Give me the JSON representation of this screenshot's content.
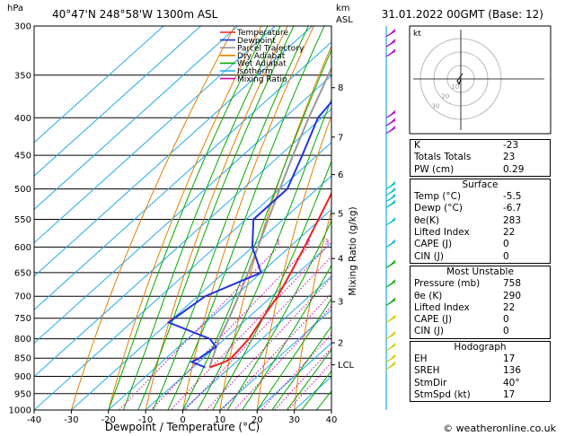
{
  "header": {
    "location": "40°47'N  248°58'W  1300m  ASL",
    "valid": "31.01.2022  00GMT  (Base: 12)",
    "unit_hpa": "hPa",
    "unit_km": "km",
    "unit_asl": "ASL"
  },
  "chart_data": {
    "type": "skew-t",
    "xlabel": "Dewpoint / Temperature (°C)",
    "mixing_ratio_label": "Mixing Ratio (g/kg)",
    "temperature_ticks": [
      -40,
      -30,
      -20,
      -10,
      0,
      10,
      20,
      30,
      40
    ],
    "pressure_ticks": [
      300,
      350,
      400,
      450,
      500,
      550,
      600,
      650,
      700,
      750,
      800,
      850,
      900,
      950,
      1000
    ],
    "km_ticks": [
      {
        "label": "8",
        "p": 364
      },
      {
        "label": "7",
        "p": 425
      },
      {
        "label": "6",
        "p": 478
      },
      {
        "label": "5",
        "p": 540
      },
      {
        "label": "4",
        "p": 622
      },
      {
        "label": "3",
        "p": 712
      },
      {
        "label": "2",
        "p": 810
      },
      {
        "label": "LCL",
        "p": 868
      }
    ],
    "mixing_ratio_values": [
      "1",
      "2",
      "3",
      "4",
      "6",
      "8",
      "10",
      "16",
      "20",
      "25"
    ],
    "legend": [
      {
        "name": "Temperature",
        "color": "#ee2222"
      },
      {
        "name": "Dewpoint",
        "color": "#2233dd"
      },
      {
        "name": "Parcel Trajectory",
        "color": "#999999"
      },
      {
        "name": "Dry Adiabat",
        "color": "#e08000"
      },
      {
        "name": "Wet Adiabat",
        "color": "#00aa00"
      },
      {
        "name": "Isotherm",
        "color": "#22aaee"
      },
      {
        "name": "Mixing Ratio",
        "color": "#cc00aa"
      }
    ],
    "temperature_profile": [
      {
        "p": 875,
        "t": -5.5
      },
      {
        "p": 860,
        "t": -3.0
      },
      {
        "p": 850,
        "t": -2.5
      },
      {
        "p": 800,
        "t": -3.5
      },
      {
        "p": 750,
        "t": -6.0
      },
      {
        "p": 700,
        "t": -8.5
      },
      {
        "p": 650,
        "t": -12.0
      },
      {
        "p": 600,
        "t": -16.0
      },
      {
        "p": 550,
        "t": -20.5
      },
      {
        "p": 500,
        "t": -25.5
      },
      {
        "p": 450,
        "t": -32.0
      },
      {
        "p": 400,
        "t": -38.5
      },
      {
        "p": 350,
        "t": -46.0
      },
      {
        "p": 300,
        "t": -53.0
      }
    ],
    "dewpoint_profile": [
      {
        "p": 875,
        "t": -6.7
      },
      {
        "p": 860,
        "t": -12.0
      },
      {
        "p": 850,
        "t": -11.0
      },
      {
        "p": 820,
        "t": -10.0
      },
      {
        "p": 800,
        "t": -14.0
      },
      {
        "p": 760,
        "t": -30.0
      },
      {
        "p": 700,
        "t": -28.0
      },
      {
        "p": 650,
        "t": -20.0
      },
      {
        "p": 600,
        "t": -30.0
      },
      {
        "p": 550,
        "t": -38.0
      },
      {
        "p": 530,
        "t": -38.0
      },
      {
        "p": 500,
        "t": -38.0
      },
      {
        "p": 450,
        "t": -44.0
      },
      {
        "p": 400,
        "t": -51.0
      },
      {
        "p": 350,
        "t": -54.0
      },
      {
        "p": 300,
        "t": -60.0
      }
    ],
    "parcel_profile": [
      {
        "p": 875,
        "t": -5.5
      },
      {
        "p": 850,
        "t": -7.5
      },
      {
        "p": 800,
        "t": -11.5
      },
      {
        "p": 750,
        "t": -15.0
      },
      {
        "p": 700,
        "t": -19.0
      },
      {
        "p": 650,
        "t": -23.5
      },
      {
        "p": 600,
        "t": -28.5
      },
      {
        "p": 550,
        "t": -34.0
      },
      {
        "p": 500,
        "t": -40.0
      },
      {
        "p": 450,
        "t": -46.5
      },
      {
        "p": 400,
        "t": -53.5
      },
      {
        "p": 350,
        "t": -61.0
      },
      {
        "p": 300,
        "t": -69.5
      }
    ]
  },
  "hodograph": {
    "label": "kt",
    "ring_labels": [
      "10",
      "20",
      "30"
    ]
  },
  "indices": {
    "K": {
      "label": "K",
      "value": "-23"
    },
    "TT": {
      "label": "Totals Totals",
      "value": "23"
    },
    "PW": {
      "label": "PW (cm)",
      "value": "0.29"
    }
  },
  "surface": {
    "title": "Surface",
    "rows": [
      {
        "label": "Temp (°C)",
        "value": "-5.5"
      },
      {
        "label": "Dewp (°C)",
        "value": "-6.7"
      },
      {
        "label": "θe(K)",
        "value": "283"
      },
      {
        "label": "Lifted Index",
        "value": "22"
      },
      {
        "label": "CAPE (J)",
        "value": "0"
      },
      {
        "label": "CIN (J)",
        "value": "0"
      }
    ]
  },
  "unstable": {
    "title": "Most Unstable",
    "rows": [
      {
        "label": "Pressure (mb)",
        "value": "758"
      },
      {
        "label": "θe (K)",
        "value": "290"
      },
      {
        "label": "Lifted Index",
        "value": "22"
      },
      {
        "label": "CAPE (J)",
        "value": "0"
      },
      {
        "label": "CIN (J)",
        "value": "0"
      }
    ]
  },
  "hodo_box": {
    "title": "Hodograph",
    "rows": [
      {
        "label": "EH",
        "value": "17"
      },
      {
        "label": "SREH",
        "value": "136"
      },
      {
        "label": "StmDir",
        "value": "40°"
      },
      {
        "label": "StmSpd (kt)",
        "value": "17"
      }
    ]
  },
  "footer": "© weatheronline.co.uk"
}
